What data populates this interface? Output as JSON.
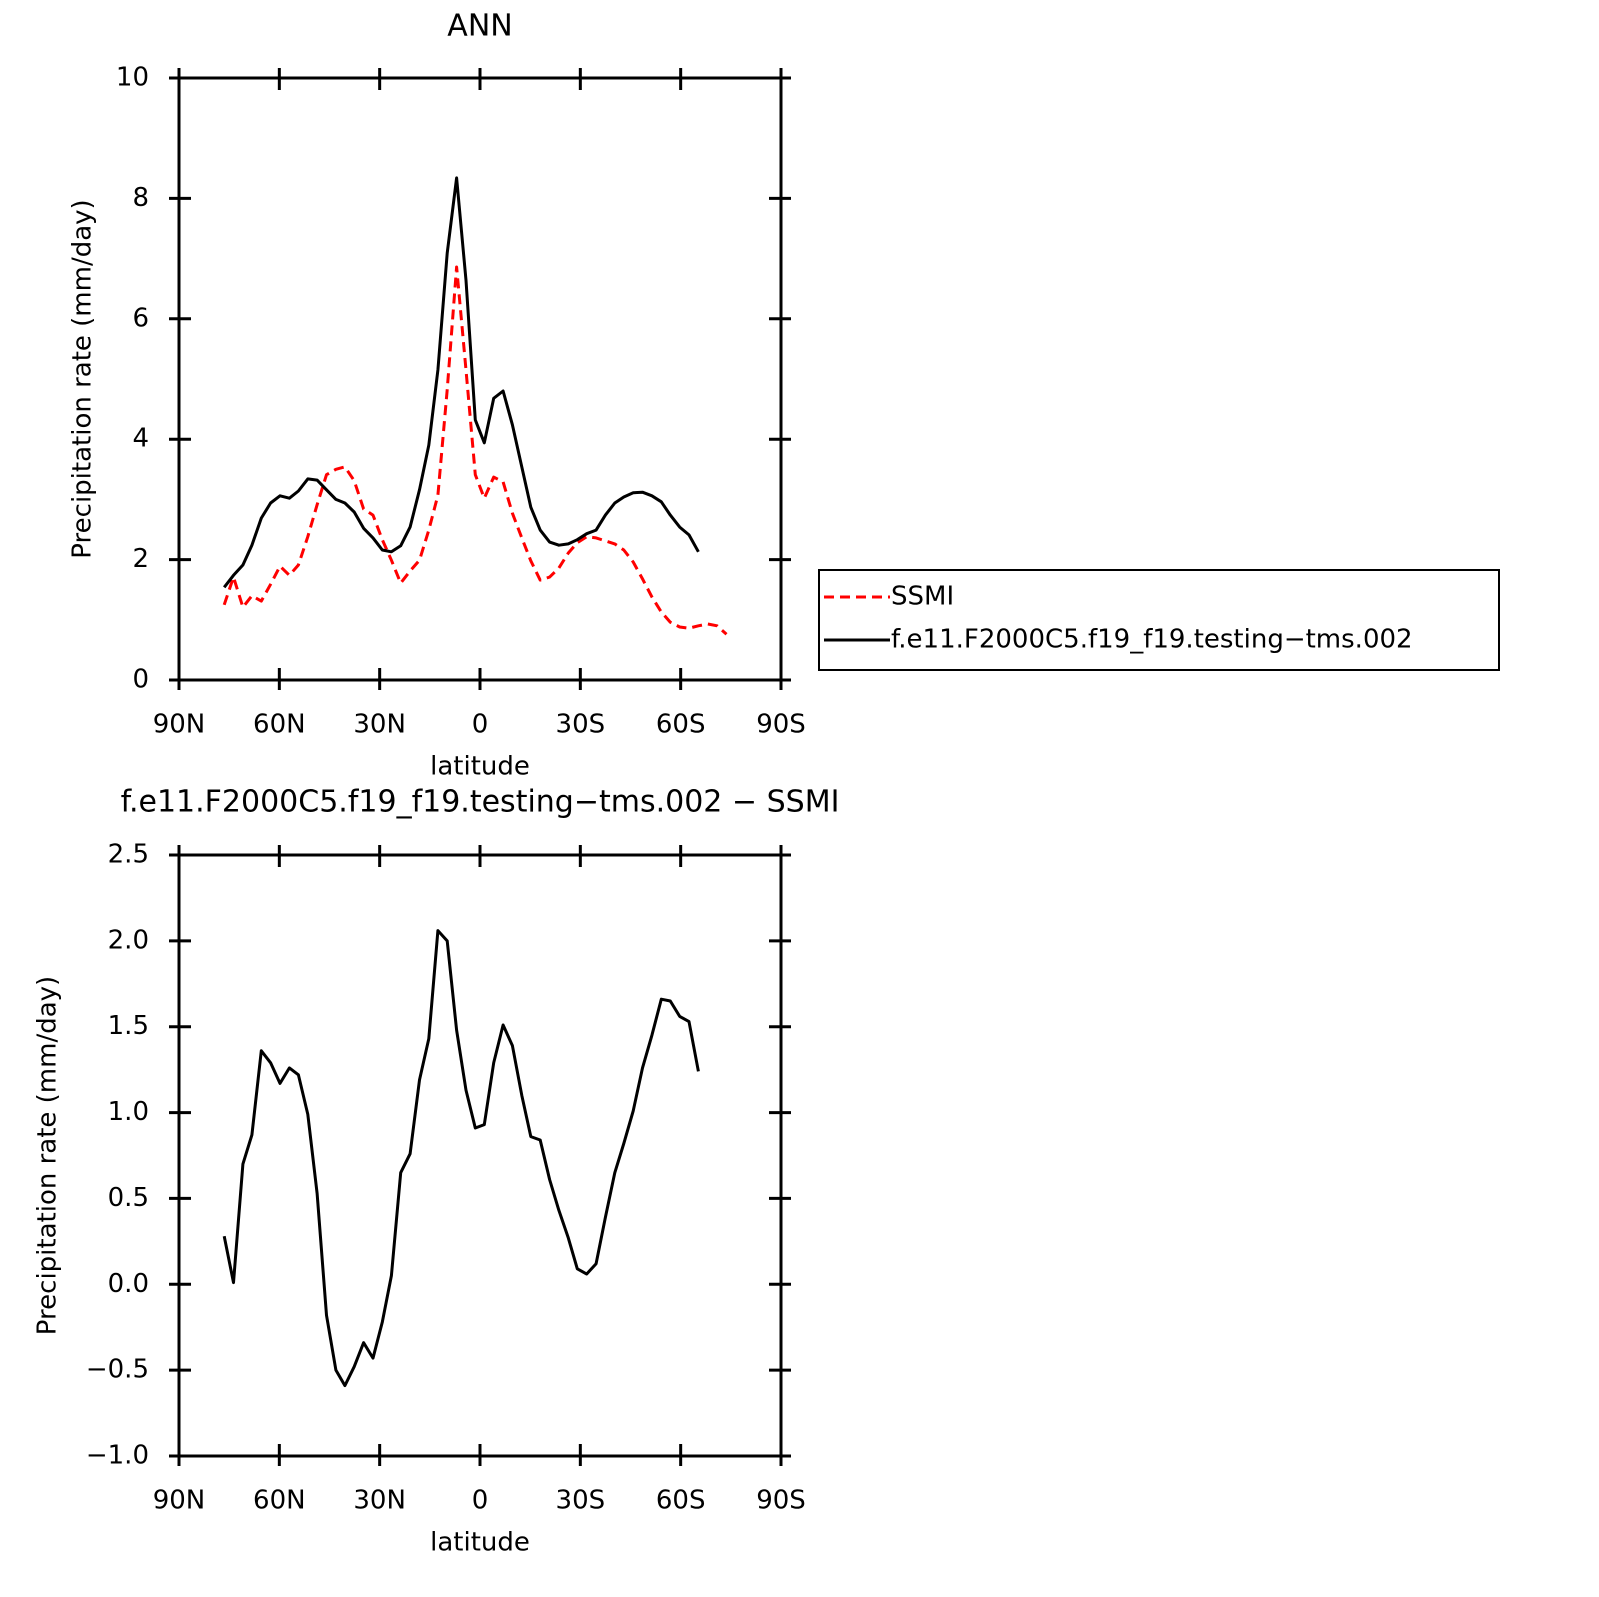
{
  "chart_data": [
    {
      "type": "line",
      "title": "ANN",
      "xlabel": "latitude",
      "ylabel": "Precipitation rate (mm/day)",
      "x": [
        76.5,
        73.7,
        70.9,
        68.2,
        65.4,
        62.6,
        59.8,
        57.0,
        54.3,
        51.5,
        48.7,
        45.9,
        43.1,
        40.4,
        37.6,
        34.8,
        32.0,
        29.2,
        26.5,
        23.7,
        20.9,
        18.1,
        15.3,
        12.6,
        9.8,
        7.0,
        4.2,
        1.4,
        -1.3,
        -4.1,
        -6.9,
        -9.7,
        -12.5,
        -15.2,
        -18.0,
        -20.8,
        -23.6,
        -26.4,
        -29.1,
        -31.9,
        -34.7,
        -37.5,
        -40.3,
        -43.0,
        -45.8,
        -48.6,
        -51.4,
        -54.2,
        -56.9,
        -59.7,
        -62.5,
        -65.3,
        -68.1,
        -70.9,
        -73.7
      ],
      "series": [
        {
          "name": "SSMI",
          "color": "#ff0000",
          "dash": true,
          "values": [
            1.25,
            1.71,
            1.21,
            1.4,
            1.31,
            1.59,
            1.89,
            1.74,
            1.91,
            2.38,
            2.91,
            3.41,
            3.5,
            3.54,
            3.31,
            2.84,
            2.74,
            2.33,
            1.99,
            1.61,
            1.81,
            1.99,
            2.49,
            3.07,
            4.82,
            6.86,
            5.15,
            3.41,
            3.02,
            3.37,
            3.29,
            2.77,
            2.36,
            1.98,
            1.66,
            1.71,
            1.86,
            2.11,
            2.28,
            2.38,
            2.36,
            2.31,
            2.26,
            2.16,
            1.96,
            1.68,
            1.38,
            1.13,
            0.96,
            0.88,
            0.86,
            0.9,
            0.93,
            0.9,
            0.76
          ]
        },
        {
          "name": "f.e11.F2000C5.f19_f19.testing−tms.002",
          "color": "#000000",
          "dash": false,
          "values": [
            1.54,
            1.74,
            1.91,
            2.24,
            2.69,
            2.94,
            3.06,
            3.02,
            3.14,
            3.34,
            3.32,
            3.16,
            3.0,
            2.94,
            2.79,
            2.52,
            2.36,
            2.16,
            2.13,
            2.23,
            2.54,
            3.16,
            3.9,
            5.15,
            7.09,
            8.34,
            6.64,
            4.32,
            3.94,
            4.68,
            4.8,
            4.24,
            3.54,
            2.87,
            2.49,
            2.29,
            2.24,
            2.26,
            2.33,
            2.43,
            2.49,
            2.74,
            2.94,
            3.04,
            3.11,
            3.12,
            3.06,
            2.96,
            2.74,
            2.54,
            2.41,
            2.13,
            null,
            null,
            null
          ]
        }
      ],
      "xlim": [
        90,
        -90
      ],
      "ylim": [
        0,
        10
      ],
      "xticks": [
        {
          "value": 90,
          "label": "90N"
        },
        {
          "value": 60,
          "label": "60N"
        },
        {
          "value": 30,
          "label": "30N"
        },
        0,
        {
          "value": -30,
          "label": "30S"
        },
        {
          "value": -60,
          "label": "60S"
        },
        {
          "value": -90,
          "label": "90S"
        }
      ],
      "yticks": [
        0,
        2,
        4,
        6,
        8,
        10
      ],
      "legend": "right"
    },
    {
      "type": "line",
      "title": "f.e11.F2000C5.f19_f19.testing−tms.002 − SSMI",
      "xlabel": "latitude",
      "ylabel": "Precipitation rate (mm/day)",
      "x": [
        76.5,
        73.7,
        70.9,
        68.2,
        65.4,
        62.6,
        59.8,
        57.0,
        54.3,
        51.5,
        48.7,
        45.9,
        43.1,
        40.4,
        37.6,
        34.8,
        32.0,
        29.2,
        26.5,
        23.7,
        20.9,
        18.1,
        15.3,
        12.6,
        9.8,
        7.0,
        4.2,
        1.4,
        -1.3,
        -4.1,
        -6.9,
        -9.7,
        -12.5,
        -15.2,
        -18.0,
        -20.8,
        -23.6,
        -26.4,
        -29.1,
        -31.9,
        -34.7,
        -37.5,
        -40.3,
        -43.0,
        -45.8,
        -48.6,
        -51.4,
        -54.2,
        -56.9,
        -59.7,
        -62.5,
        -65.3
      ],
      "series": [
        {
          "color": "#000000",
          "dash": false,
          "values": [
            0.28,
            0.01,
            0.7,
            0.87,
            1.36,
            1.29,
            1.17,
            1.26,
            1.22,
            0.99,
            0.53,
            -0.18,
            -0.5,
            -0.59,
            -0.48,
            -0.34,
            -0.43,
            -0.22,
            0.05,
            0.65,
            0.76,
            1.19,
            1.43,
            2.06,
            2.0,
            1.48,
            1.13,
            0.91,
            0.93,
            1.29,
            1.51,
            1.39,
            1.1,
            0.86,
            0.84,
            0.61,
            0.43,
            0.27,
            0.09,
            0.06,
            0.12,
            0.39,
            0.65,
            0.82,
            1.01,
            1.26,
            1.45,
            1.66,
            1.65,
            1.56,
            1.53,
            1.24
          ]
        }
      ],
      "xlim": [
        90,
        -90
      ],
      "ylim": [
        -1.0,
        2.5
      ],
      "xticks": [
        {
          "value": 90,
          "label": "90N"
        },
        {
          "value": 60,
          "label": "60N"
        },
        {
          "value": 30,
          "label": "30N"
        },
        0,
        {
          "value": -30,
          "label": "30S"
        },
        {
          "value": -60,
          "label": "60S"
        },
        {
          "value": -90,
          "label": "90S"
        }
      ],
      "yticks": [
        {
          "value": -1.0,
          "label": "−1.0"
        },
        {
          "value": -0.5,
          "label": "−0.5"
        },
        {
          "value": 0.0,
          "label": "0.0"
        },
        0.5,
        {
          "value": 1.0,
          "label": "1.0"
        },
        1.5,
        {
          "value": 2.0,
          "label": "2.0"
        },
        2.5
      ]
    }
  ]
}
